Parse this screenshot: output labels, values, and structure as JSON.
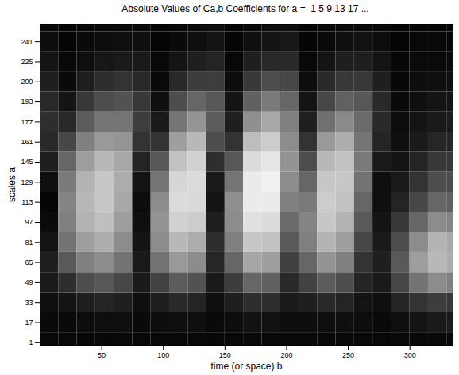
{
  "chart_data": {
    "type": "heatmap",
    "title": "Absolute Values of Ca,b Coefficients for a =  1 5 9 13 17 ...",
    "x_label": "time (or space) b",
    "y_label": "scales a",
    "xlim": [
      0,
      335
    ],
    "ylim": [
      -1,
      255
    ],
    "xticks": [
      50,
      100,
      150,
      200,
      250,
      300
    ],
    "yticks": [
      1,
      17,
      33,
      49,
      65,
      81,
      97,
      113,
      129,
      145,
      161,
      177,
      193,
      209,
      225,
      241
    ],
    "grid": false,
    "color": "gray",
    "color_range": [
      0,
      100
    ],
    "b_bins": [
      0,
      15,
      30,
      45,
      60,
      75,
      90,
      105,
      120,
      135,
      150,
      165,
      180,
      195,
      210,
      225,
      240,
      255,
      270,
      285,
      300,
      315,
      330,
      345
    ],
    "a_bins": [
      -7,
      9,
      25,
      41,
      57,
      73,
      89,
      105,
      121,
      137,
      153,
      169,
      185,
      201,
      217,
      233,
      249,
      265
    ],
    "values": [
      [
        3,
        3,
        3,
        3,
        3,
        3,
        3,
        3,
        3,
        3,
        3,
        3,
        3,
        3,
        3,
        3,
        3,
        3,
        3,
        3,
        3,
        3,
        3
      ],
      [
        4,
        4,
        5,
        6,
        6,
        4,
        5,
        6,
        6,
        4,
        5,
        7,
        7,
        5,
        5,
        6,
        6,
        5,
        4,
        6,
        8,
        10,
        10
      ],
      [
        6,
        8,
        12,
        14,
        12,
        6,
        12,
        16,
        14,
        6,
        12,
        18,
        18,
        10,
        12,
        16,
        14,
        8,
        6,
        14,
        20,
        24,
        22
      ],
      [
        10,
        18,
        30,
        34,
        28,
        10,
        26,
        36,
        32,
        10,
        24,
        40,
        38,
        16,
        26,
        36,
        30,
        14,
        10,
        28,
        45,
        55,
        50
      ],
      [
        12,
        35,
        50,
        55,
        45,
        10,
        45,
        60,
        55,
        15,
        40,
        65,
        62,
        25,
        40,
        58,
        50,
        20,
        12,
        35,
        62,
        72,
        68
      ],
      [
        8,
        45,
        62,
        68,
        55,
        8,
        55,
        72,
        68,
        18,
        50,
        78,
        76,
        35,
        50,
        70,
        62,
        28,
        10,
        30,
        55,
        70,
        66
      ],
      [
        4,
        50,
        70,
        75,
        62,
        6,
        58,
        82,
        80,
        12,
        55,
        88,
        86,
        42,
        52,
        78,
        70,
        35,
        8,
        22,
        40,
        55,
        52
      ],
      [
        2,
        52,
        72,
        78,
        66,
        5,
        55,
        86,
        85,
        8,
        56,
        92,
        92,
        50,
        48,
        80,
        76,
        40,
        6,
        14,
        28,
        40,
        38
      ],
      [
        6,
        48,
        70,
        78,
        68,
        8,
        46,
        84,
        86,
        10,
        46,
        92,
        94,
        55,
        40,
        78,
        78,
        45,
        6,
        10,
        20,
        30,
        30
      ],
      [
        12,
        40,
        62,
        72,
        66,
        14,
        34,
        76,
        82,
        18,
        34,
        86,
        90,
        58,
        30,
        72,
        76,
        48,
        10,
        8,
        14,
        22,
        22
      ],
      [
        16,
        28,
        50,
        60,
        58,
        20,
        20,
        62,
        72,
        30,
        20,
        74,
        80,
        55,
        20,
        60,
        68,
        46,
        14,
        6,
        10,
        15,
        15
      ],
      [
        18,
        16,
        36,
        46,
        46,
        24,
        10,
        46,
        58,
        36,
        12,
        56,
        66,
        50,
        12,
        44,
        54,
        42,
        16,
        5,
        8,
        10,
        10
      ],
      [
        16,
        8,
        22,
        30,
        32,
        22,
        6,
        30,
        40,
        34,
        8,
        38,
        48,
        40,
        8,
        28,
        38,
        34,
        16,
        4,
        6,
        8,
        8
      ],
      [
        12,
        4,
        12,
        18,
        20,
        16,
        4,
        16,
        24,
        24,
        5,
        22,
        30,
        28,
        5,
        16,
        22,
        22,
        12,
        3,
        5,
        6,
        6
      ],
      [
        8,
        3,
        6,
        9,
        10,
        10,
        3,
        8,
        12,
        14,
        3,
        12,
        16,
        16,
        3,
        8,
        12,
        12,
        8,
        3,
        4,
        4,
        4
      ],
      [
        5,
        2,
        4,
        5,
        6,
        6,
        2,
        4,
        6,
        8,
        2,
        6,
        8,
        9,
        2,
        4,
        6,
        7,
        5,
        2,
        3,
        3,
        3
      ],
      [
        4,
        2,
        3,
        4,
        4,
        4,
        2,
        3,
        4,
        5,
        2,
        4,
        5,
        5,
        2,
        3,
        4,
        4,
        3,
        2,
        2,
        2,
        2
      ]
    ]
  }
}
